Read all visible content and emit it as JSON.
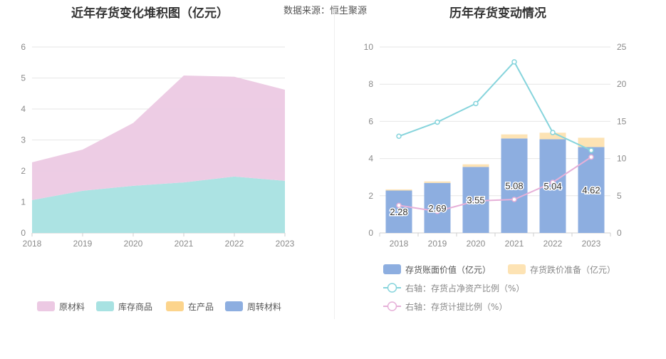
{
  "left_title": "近年存货变化堆积图（亿元）",
  "right_title": "历年存货变动情况",
  "source": "数据来源：恒生聚源",
  "chart_data": [
    {
      "type": "area",
      "title": "近年存货变化堆积图（亿元）",
      "x": [
        "2018",
        "2019",
        "2020",
        "2021",
        "2022",
        "2023"
      ],
      "ylim": [
        0,
        6
      ],
      "yticks": [
        0,
        1,
        2,
        3,
        4,
        5,
        6
      ],
      "stacked": true,
      "series": [
        {
          "name": "原材料",
          "color": "#ecc9e3",
          "values": [
            1.22,
            1.33,
            2.03,
            3.45,
            3.22,
            2.94
          ]
        },
        {
          "name": "库存商品",
          "color": "#a8e2e2",
          "values": [
            1.06,
            1.36,
            1.52,
            1.63,
            1.82,
            1.68
          ]
        },
        {
          "name": "在产品",
          "color": "#fcd48c",
          "values": [
            0,
            0,
            0,
            0,
            0,
            0
          ]
        },
        {
          "name": "周转材料",
          "color": "#8daee0",
          "values": [
            0,
            0,
            0,
            0,
            0,
            0
          ]
        }
      ],
      "legend": [
        "原材料",
        "库存商品",
        "在产品",
        "周转材料"
      ],
      "legend_position": "bottom",
      "grid": true
    },
    {
      "type": "bar",
      "title": "历年存货变动情况",
      "categories": [
        "2018",
        "2019",
        "2020",
        "2021",
        "2022",
        "2023"
      ],
      "ylim": [
        0,
        10
      ],
      "yticks": [
        0,
        2,
        4,
        6,
        8,
        10
      ],
      "y2lim": [
        0,
        25
      ],
      "y2ticks": [
        0,
        5,
        10,
        15,
        20,
        25
      ],
      "series": [
        {
          "name": "存货账面价值（亿元）",
          "type": "bar",
          "color": "#8daee0",
          "values": [
            2.28,
            2.69,
            3.55,
            5.08,
            5.04,
            4.62
          ],
          "labels": [
            "2.28",
            "2.69",
            "3.55",
            "5.08",
            "5.04",
            "4.62"
          ]
        },
        {
          "name": "存货跌价准备（亿元）",
          "type": "bar",
          "color": "#fde3b4",
          "values": [
            0.06,
            0.08,
            0.14,
            0.22,
            0.35,
            0.5
          ]
        },
        {
          "name": "右轴：存货占净资产比例（%）",
          "type": "line",
          "axis": "right",
          "color": "#86d4dc",
          "values": [
            13.0,
            14.9,
            17.4,
            23.0,
            13.5,
            11.1
          ]
        },
        {
          "name": "右轴：存货计提比例（%）",
          "type": "line",
          "axis": "right",
          "color": "#e6b0d8",
          "values": [
            3.7,
            2.9,
            4.3,
            4.5,
            6.8,
            10.2
          ]
        }
      ],
      "legend_position": "bottom",
      "grid": true
    }
  ]
}
